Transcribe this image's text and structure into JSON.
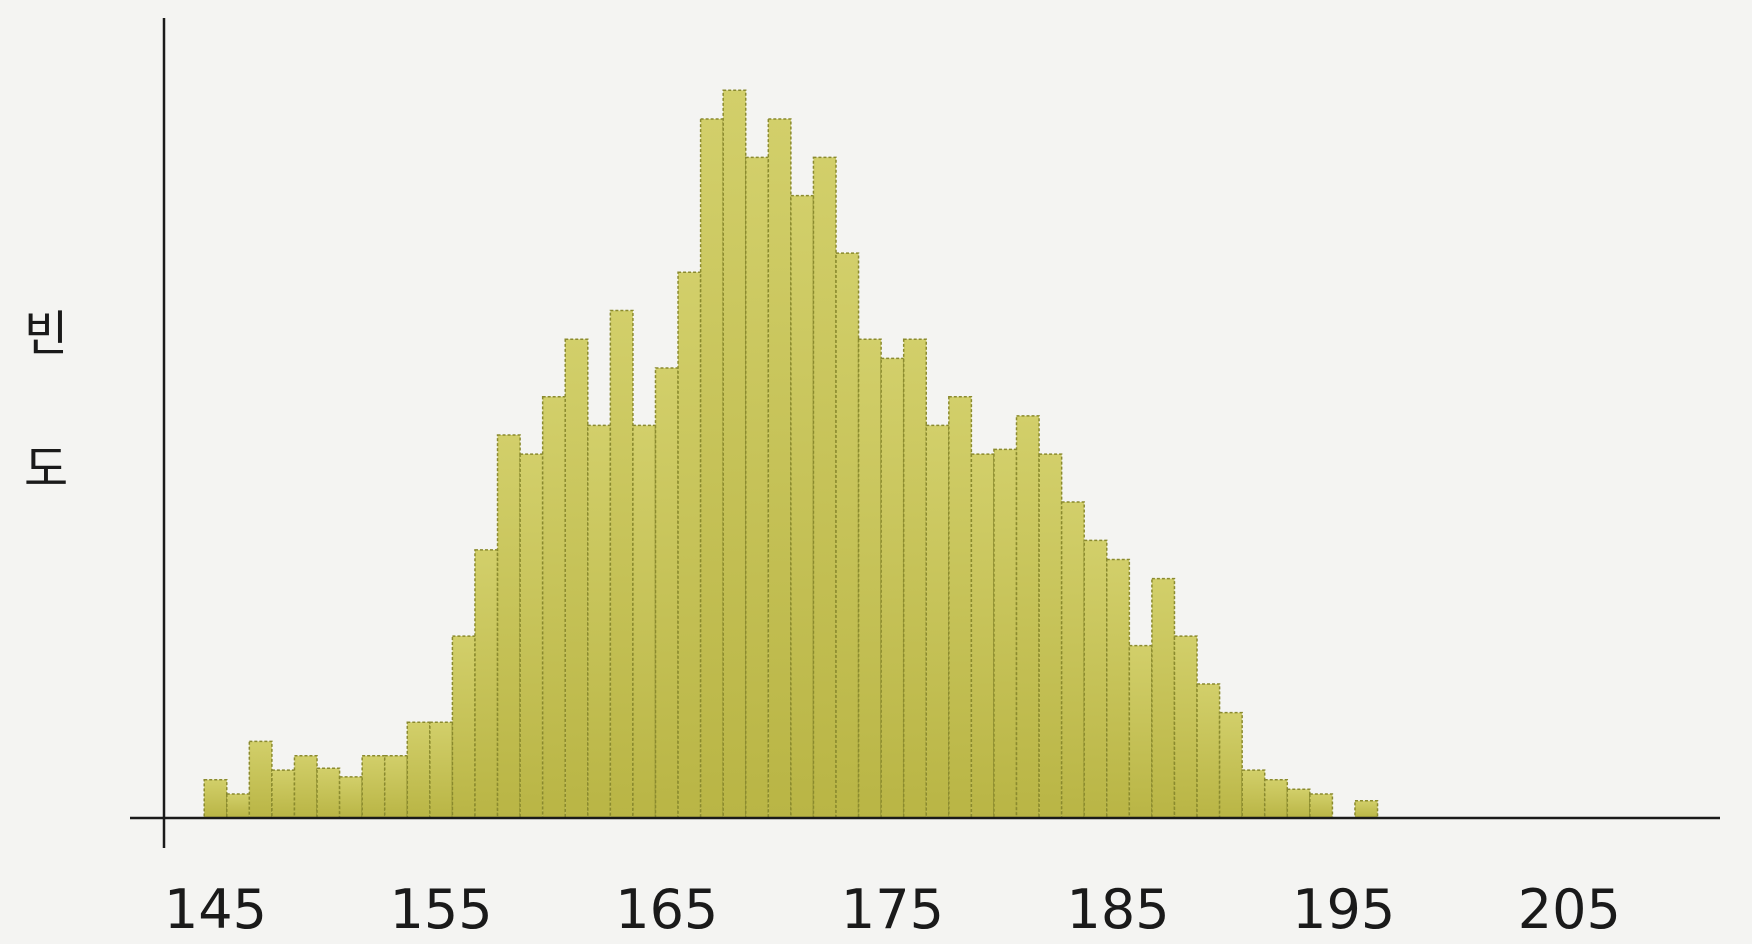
{
  "chart_data": {
    "type": "bar",
    "title": "",
    "xlabel": "",
    "ylabel": "빈도",
    "ylabel_chars": [
      "빈",
      "도"
    ],
    "xlim": [
      141.3,
      211.5
    ],
    "ylim": [
      0,
      80
    ],
    "bin_width": 1,
    "bins": [
      {
        "x": 145.0,
        "count": 4.0
      },
      {
        "x": 146.0,
        "count": 2.5
      },
      {
        "x": 147.0,
        "count": 8.0
      },
      {
        "x": 148.0,
        "count": 5.0
      },
      {
        "x": 149.0,
        "count": 6.5
      },
      {
        "x": 150.0,
        "count": 5.2
      },
      {
        "x": 151.0,
        "count": 4.3
      },
      {
        "x": 152.0,
        "count": 6.5
      },
      {
        "x": 153.0,
        "count": 6.5
      },
      {
        "x": 154.0,
        "count": 10.0
      },
      {
        "x": 155.0,
        "count": 10.0
      },
      {
        "x": 156.0,
        "count": 19.0
      },
      {
        "x": 157.0,
        "count": 28.0
      },
      {
        "x": 158.0,
        "count": 40.0
      },
      {
        "x": 159.0,
        "count": 38.0
      },
      {
        "x": 160.0,
        "count": 44.0
      },
      {
        "x": 161.0,
        "count": 50.0
      },
      {
        "x": 162.0,
        "count": 41.0
      },
      {
        "x": 163.0,
        "count": 53.0
      },
      {
        "x": 164.0,
        "count": 41.0
      },
      {
        "x": 165.0,
        "count": 47.0
      },
      {
        "x": 166.0,
        "count": 57.0
      },
      {
        "x": 167.0,
        "count": 73.0
      },
      {
        "x": 168.0,
        "count": 76.0
      },
      {
        "x": 169.0,
        "count": 69.0
      },
      {
        "x": 170.0,
        "count": 73.0
      },
      {
        "x": 171.0,
        "count": 65.0
      },
      {
        "x": 172.0,
        "count": 69.0
      },
      {
        "x": 173.0,
        "count": 59.0
      },
      {
        "x": 174.0,
        "count": 50.0
      },
      {
        "x": 175.0,
        "count": 48.0
      },
      {
        "x": 176.0,
        "count": 50.0
      },
      {
        "x": 177.0,
        "count": 41.0
      },
      {
        "x": 178.0,
        "count": 44.0
      },
      {
        "x": 179.0,
        "count": 38.0
      },
      {
        "x": 180.0,
        "count": 38.5
      },
      {
        "x": 181.0,
        "count": 42.0
      },
      {
        "x": 182.0,
        "count": 38.0
      },
      {
        "x": 183.0,
        "count": 33.0
      },
      {
        "x": 184.0,
        "count": 29.0
      },
      {
        "x": 185.0,
        "count": 27.0
      },
      {
        "x": 186.0,
        "count": 18.0
      },
      {
        "x": 187.0,
        "count": 25.0
      },
      {
        "x": 188.0,
        "count": 19.0
      },
      {
        "x": 189.0,
        "count": 14.0
      },
      {
        "x": 190.0,
        "count": 11.0
      },
      {
        "x": 191.0,
        "count": 5.0
      },
      {
        "x": 192.0,
        "count": 4.0
      },
      {
        "x": 193.0,
        "count": 3.0
      },
      {
        "x": 194.0,
        "count": 2.5
      },
      {
        "x": 196.0,
        "count": 1.8
      }
    ],
    "xticks": [
      "145",
      "155",
      "165",
      "175",
      "185",
      "195",
      "205"
    ],
    "xtick_values": [
      145,
      155,
      165,
      175,
      185,
      195,
      205
    ],
    "grid": false,
    "legend": "none",
    "colors": {
      "bar_fill_top": "#d2cf6a",
      "bar_fill_bottom": "#b9b545",
      "bar_edge": "#8a8a2e",
      "axis": "#1a1a1a",
      "background": "#f4f4f2"
    }
  }
}
